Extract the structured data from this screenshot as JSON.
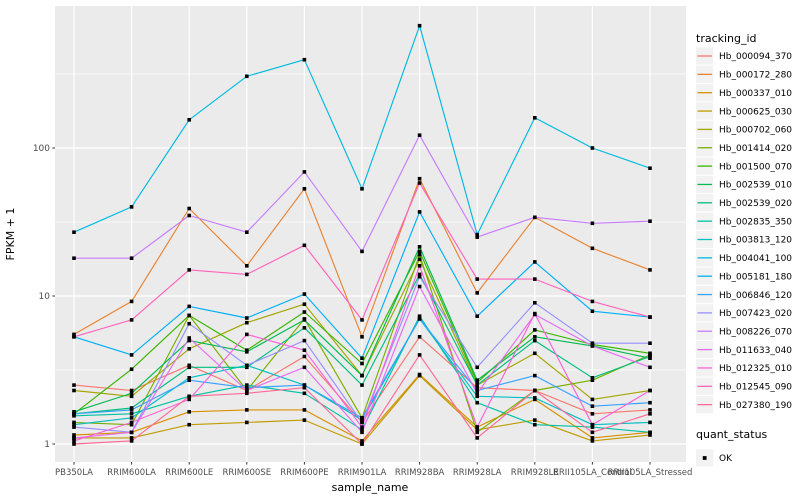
{
  "figure": {
    "legend": {
      "tracking_title": "tracking_id",
      "quant_title": "quant_status",
      "quant_items": [
        {
          "label": "OK",
          "marker": "black-square-icon"
        }
      ]
    },
    "colors": {
      "panel_background": "#EBEBEB",
      "gridline": "#FFFFFF",
      "tick_text": "#4D4D4D",
      "point": "#000000",
      "legend_key_background": "#F2F2F2"
    }
  },
  "chart_data": {
    "type": "line",
    "title": "",
    "xlabel": "sample_name",
    "ylabel": "FPKM + 1",
    "y_scale": "log10",
    "ylim": [
      1,
      1000
    ],
    "y_ticks": [
      1,
      10,
      100
    ],
    "y_minor_ticks": [
      3.162,
      31.62,
      316.2
    ],
    "grid": true,
    "legend_position": "right",
    "point_marker": "black-square",
    "categories": [
      "PB350LA",
      "RRIM600LA",
      "RRIM600LE",
      "RRIM600SE",
      "RRIM600PE",
      "RRIM901LA",
      "RRIM928BA",
      "RRIM928LA",
      "RRIM928LE",
      "RRII105LA_Control",
      "RRII105LA_Stressed"
    ],
    "series": [
      {
        "name": "Hb_000094_370",
        "color": "#F8766D",
        "values": [
          2.5,
          2.3,
          3.4,
          2.3,
          3.9,
          1.4,
          5.3,
          2.4,
          2.3,
          1.6,
          1.7
        ]
      },
      {
        "name": "Hb_000172_280",
        "color": "#EA8331",
        "values": [
          5.5,
          9.2,
          39,
          16,
          53,
          5.3,
          62,
          10.5,
          34,
          21,
          15
        ]
      },
      {
        "name": "Hb_000337_010",
        "color": "#D89000",
        "values": [
          1.15,
          1.2,
          1.65,
          1.7,
          1.7,
          1.05,
          2.95,
          1.3,
          2.0,
          1.1,
          1.2
        ]
      },
      {
        "name": "Hb_000625_030",
        "color": "#C09B00",
        "values": [
          1.1,
          1.1,
          1.35,
          1.4,
          1.45,
          1.0,
          2.9,
          1.25,
          1.45,
          1.05,
          1.15
        ]
      },
      {
        "name": "Hb_000702_060",
        "color": "#A3A500",
        "values": [
          2.3,
          2.1,
          4.4,
          6.6,
          8.8,
          2.9,
          17.7,
          2.5,
          4.1,
          2.0,
          2.3
        ]
      },
      {
        "name": "Hb_001414_020",
        "color": "#7CAE00",
        "values": [
          1.4,
          1.35,
          7.4,
          2.3,
          7.0,
          1.5,
          19,
          1.2,
          2.3,
          2.7,
          4.0
        ]
      },
      {
        "name": "Hb_001500_070",
        "color": "#39B600",
        "values": [
          1.6,
          3.2,
          7.4,
          4.3,
          7.8,
          3.5,
          20,
          2.6,
          5.9,
          4.7,
          4.1
        ]
      },
      {
        "name": "Hb_002539_010",
        "color": "#00BB4E",
        "values": [
          1.65,
          2.2,
          5.0,
          4.2,
          6.9,
          2.9,
          21.5,
          2.7,
          5.3,
          4.6,
          3.8
        ]
      },
      {
        "name": "Hb_002539_020",
        "color": "#00BF7D",
        "values": [
          1.6,
          1.75,
          3.3,
          3.3,
          6.1,
          2.5,
          14,
          2.5,
          5.0,
          2.8,
          3.9
        ]
      },
      {
        "name": "Hb_002835_350",
        "color": "#00C1A3",
        "values": [
          1.55,
          1.6,
          2.1,
          2.5,
          2.2,
          1.25,
          7.3,
          1.9,
          1.35,
          1.3,
          1.2
        ]
      },
      {
        "name": "Hb_003813_120",
        "color": "#00BFC4",
        "values": [
          1.35,
          1.5,
          2.8,
          3.4,
          2.5,
          1.45,
          7.0,
          2.1,
          2.05,
          1.35,
          1.4
        ]
      },
      {
        "name": "Hb_004041_100",
        "color": "#00BAE0",
        "values": [
          27,
          40,
          155,
          305,
          395,
          53,
          670,
          26,
          160,
          100,
          73
        ]
      },
      {
        "name": "Hb_005181_180",
        "color": "#00B0F6",
        "values": [
          5.3,
          4.0,
          8.5,
          7.1,
          10.3,
          3.8,
          37,
          7.3,
          17,
          7.9,
          7.2
        ]
      },
      {
        "name": "Hb_006846_120",
        "color": "#35A2FF",
        "values": [
          1.6,
          1.7,
          2.7,
          2.4,
          2.5,
          1.5,
          7.0,
          2.3,
          2.9,
          1.8,
          1.9
        ]
      },
      {
        "name": "Hb_007423_020",
        "color": "#9590FF",
        "values": [
          1.3,
          1.2,
          6.5,
          3.4,
          5.0,
          1.4,
          13.5,
          3.3,
          9.0,
          4.8,
          4.8
        ]
      },
      {
        "name": "Hb_008226_070",
        "color": "#C77CFF",
        "values": [
          18,
          18,
          35,
          27,
          69,
          20,
          122,
          25,
          34,
          31,
          32
        ]
      },
      {
        "name": "Hb_011633_040",
        "color": "#E76BF3",
        "values": [
          1.1,
          1.2,
          5.2,
          2.3,
          3.3,
          1.2,
          11.6,
          2.2,
          7.5,
          4.6,
          3.3
        ]
      },
      {
        "name": "Hb_012325_010",
        "color": "#FA62DB",
        "values": [
          1.05,
          1.4,
          2.0,
          5.5,
          4.3,
          1.3,
          16,
          1.3,
          7.6,
          1.35,
          2.3
        ]
      },
      {
        "name": "Hb_012545_090",
        "color": "#FF62BC",
        "values": [
          5.3,
          6.9,
          15,
          14,
          22,
          6.9,
          58,
          13,
          13,
          9.2,
          7.2
        ]
      },
      {
        "name": "Hb_027380_190",
        "color": "#FF6A98",
        "values": [
          1.0,
          1.05,
          2.1,
          2.2,
          2.4,
          1.0,
          4.0,
          1.1,
          2.3,
          1.2,
          1.6
        ]
      }
    ]
  }
}
